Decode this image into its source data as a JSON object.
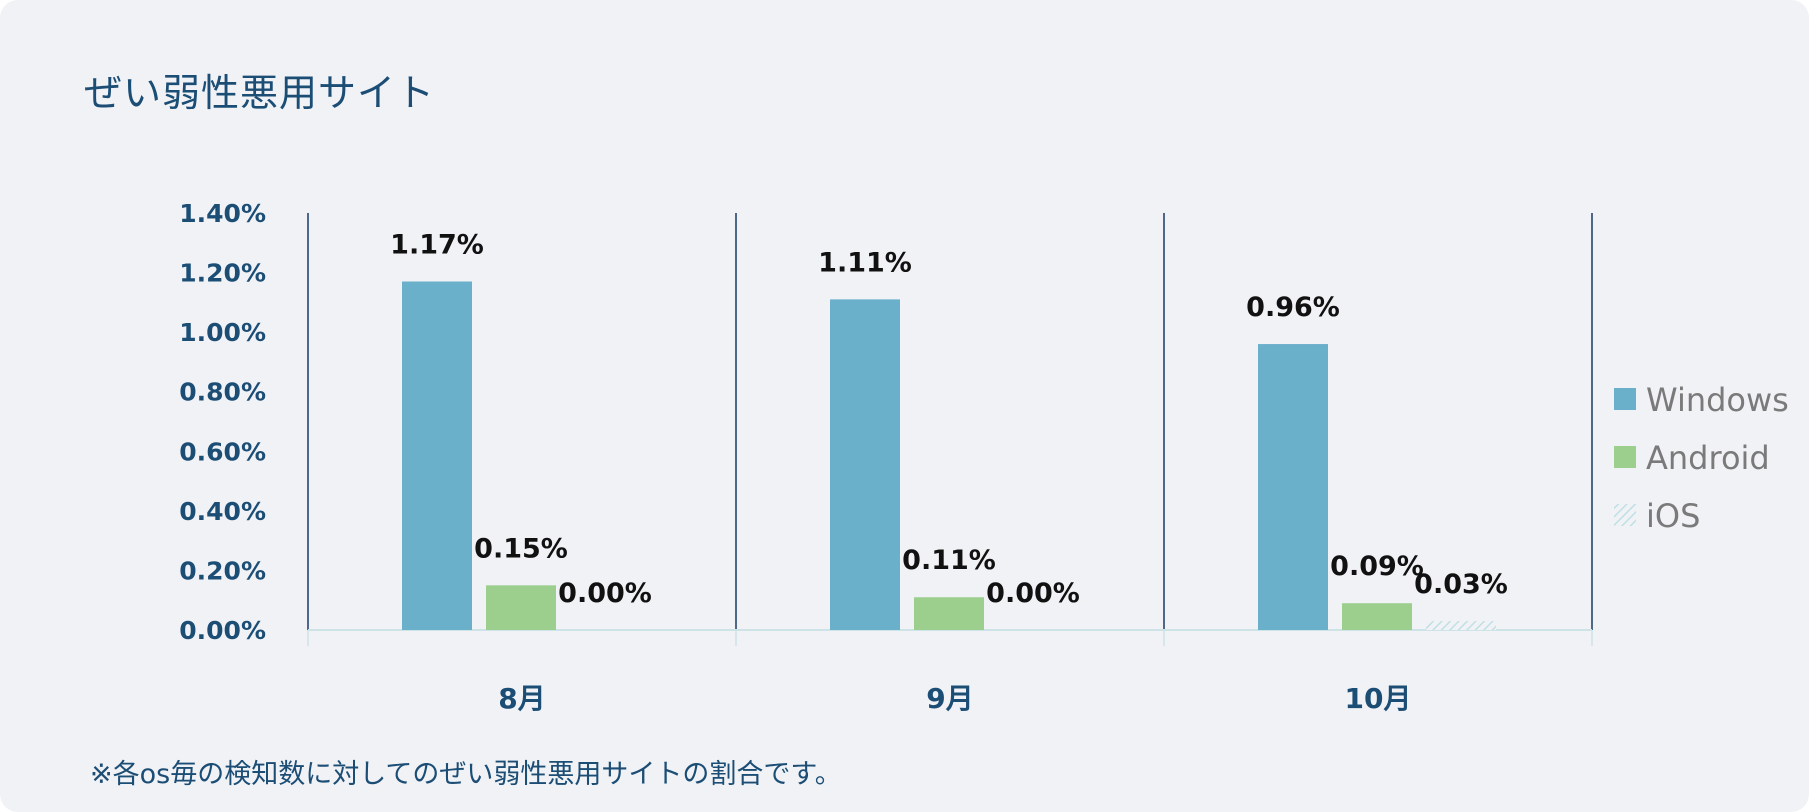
{
  "chart_data": {
    "type": "bar",
    "title": "ぜい弱性悪用サイト",
    "categories": [
      "8月",
      "9月",
      "10月"
    ],
    "series": [
      {
        "name": "Windows",
        "values": [
          1.17,
          1.11,
          0.96
        ],
        "labels": [
          "1.17%",
          "1.11%",
          "0.96%"
        ],
        "color": "#6ab0cb",
        "pattern": "solid"
      },
      {
        "name": "Android",
        "values": [
          0.15,
          0.11,
          0.09
        ],
        "labels": [
          "0.15%",
          "0.11%",
          "0.09%"
        ],
        "color": "#9ccf8e",
        "pattern": "solid"
      },
      {
        "name": "iOS",
        "values": [
          0.0,
          0.0,
          0.03
        ],
        "labels": [
          "0.00%",
          "0.00%",
          "0.03%"
        ],
        "color": "#bfe0e4",
        "pattern": "hatched"
      }
    ],
    "ylim": [
      0,
      1.4
    ],
    "yticks": [
      "0.00%",
      "0.20%",
      "0.40%",
      "0.60%",
      "0.80%",
      "1.00%",
      "1.20%",
      "1.40%"
    ],
    "grid": false,
    "legend_position": "right",
    "xlabel": "",
    "ylabel": ""
  },
  "note": "※各os毎の検知数に対してのぜい弱性悪用サイトの割合です。",
  "colors": {
    "text": "#1b4d75",
    "background": "#f0f2f6",
    "divider": "#1b3a63",
    "baseline": "#cde3e6"
  }
}
